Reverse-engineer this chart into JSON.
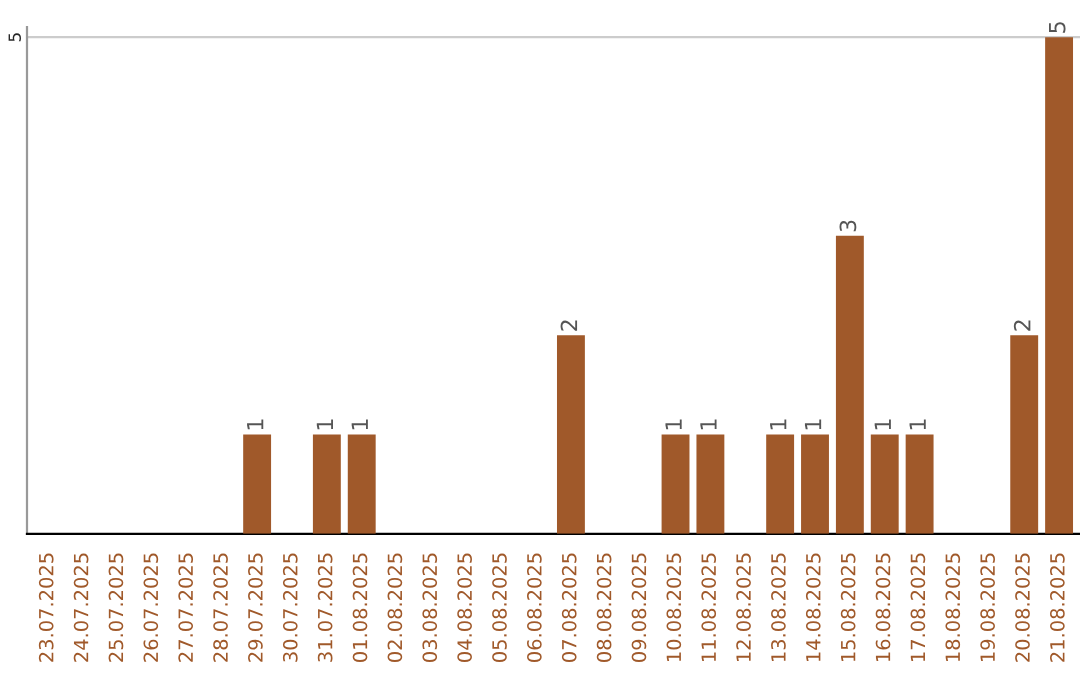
{
  "chart_data": {
    "type": "bar",
    "categories": [
      "23.07.2025",
      "24.07.2025",
      "25.07.2025",
      "26.07.2025",
      "27.07.2025",
      "28.07.2025",
      "29.07.2025",
      "30.07.2025",
      "31.07.2025",
      "01.08.2025",
      "02.08.2025",
      "03.08.2025",
      "04.08.2025",
      "05.08.2025",
      "06.08.2025",
      "07.08.2025",
      "08.08.2025",
      "09.08.2025",
      "10.08.2025",
      "11.08.2025",
      "12.08.2025",
      "13.08.2025",
      "14.08.2025",
      "15.08.2025",
      "16.08.2025",
      "17.08.2025",
      "18.08.2025",
      "19.08.2025",
      "20.08.2025",
      "21.08.2025"
    ],
    "values": [
      0,
      0,
      0,
      0,
      0,
      0,
      1,
      0,
      1,
      1,
      0,
      0,
      0,
      0,
      0,
      2,
      0,
      0,
      1,
      1,
      0,
      1,
      1,
      3,
      1,
      1,
      0,
      0,
      2,
      5
    ],
    "value_labels": [
      null,
      null,
      null,
      null,
      null,
      null,
      "1",
      null,
      "1",
      "1",
      null,
      null,
      null,
      null,
      null,
      "2",
      null,
      null,
      "1",
      "1",
      null,
      "1",
      "1",
      "3",
      "1",
      "1",
      null,
      null,
      "2",
      "5"
    ],
    "color": "#a0592a",
    "ylim": [
      0,
      5.1
    ],
    "yticks": [
      5
    ],
    "grid": "y",
    "legend": false
  }
}
